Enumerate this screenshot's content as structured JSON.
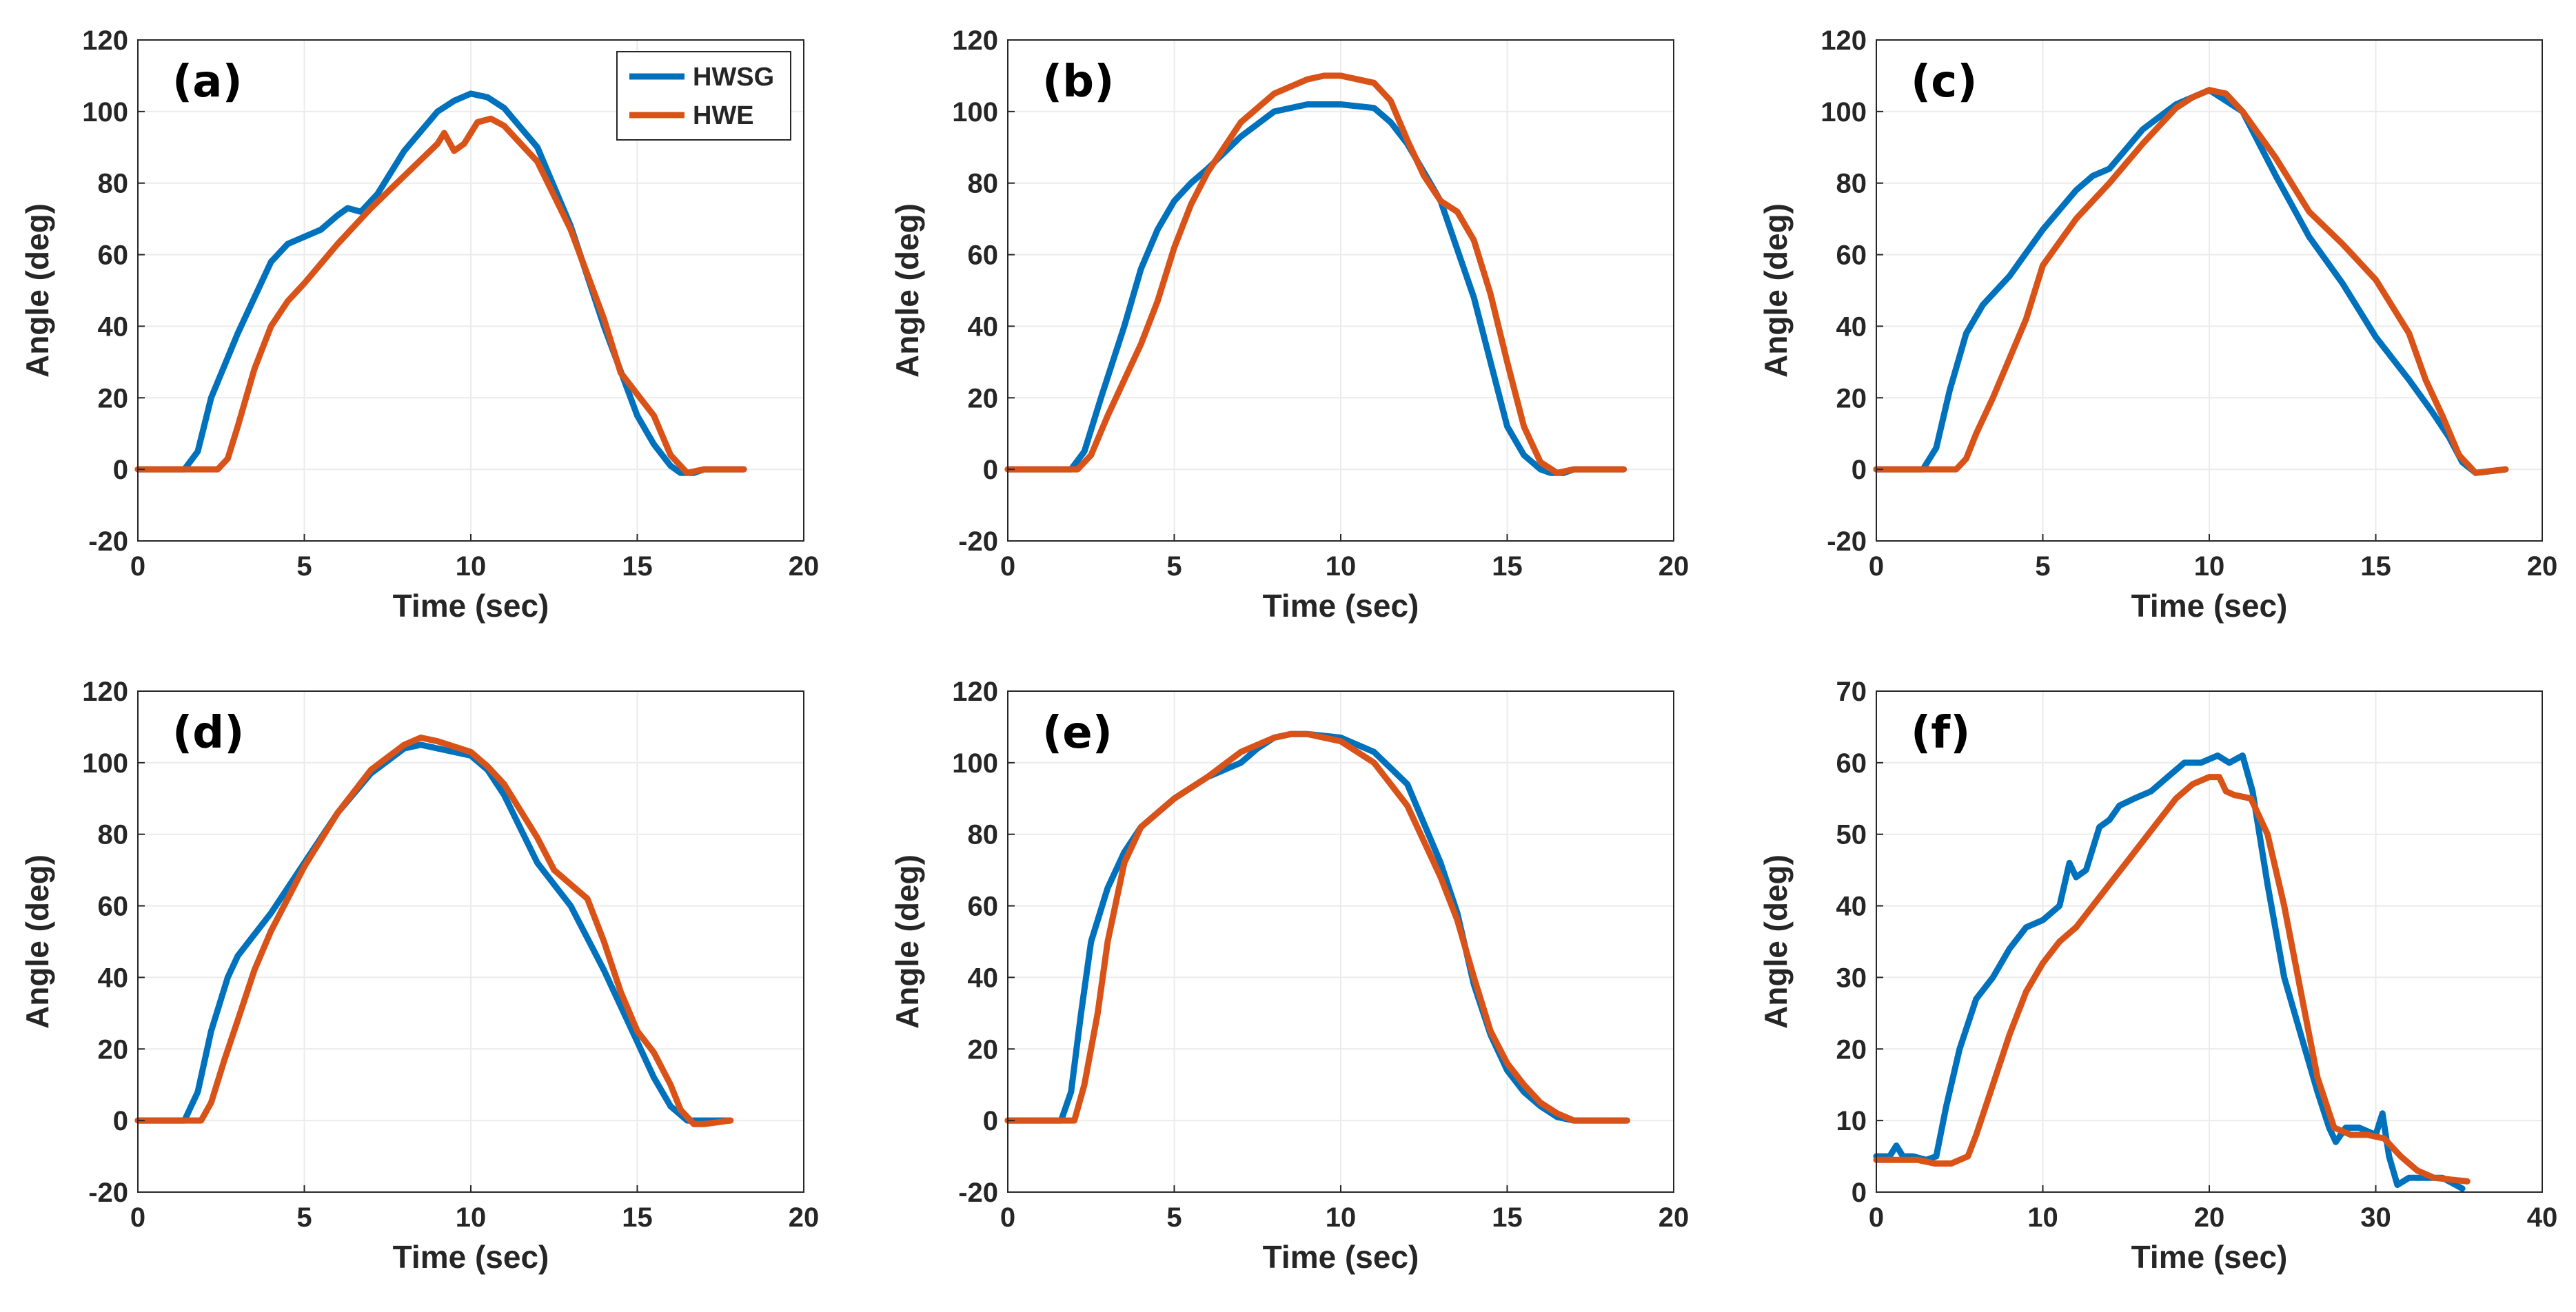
{
  "figure": {
    "colors": {
      "series1": "#0072BD",
      "series2": "#D95319",
      "axis": "#262626",
      "grid": "#ebebeb",
      "background": "#ffffff"
    },
    "legend": {
      "entries": [
        "HWSG",
        "HWE"
      ],
      "location": "top-right of panel (a)"
    }
  },
  "chart_data": [
    {
      "type": "line",
      "panel_label": "(a)",
      "xlabel": "Time (sec)",
      "ylabel": "Angle (deg)",
      "xlim": [
        0,
        20
      ],
      "ylim": [
        -20,
        120
      ],
      "xticks": [
        0,
        5,
        10,
        15,
        20
      ],
      "yticks": [
        -20,
        0,
        20,
        40,
        60,
        80,
        100,
        120
      ],
      "grid": true,
      "series": [
        {
          "name": "HWSG",
          "x": [
            0,
            1.4,
            1.8,
            2.2,
            3,
            4,
            4.5,
            5,
            5.5,
            6,
            6.3,
            6.7,
            7.2,
            8,
            9,
            9.5,
            10,
            10.5,
            11,
            12,
            13,
            14,
            15,
            15.5,
            16,
            16.3,
            16.7,
            17,
            18.2
          ],
          "y": [
            0,
            0,
            5,
            20,
            38,
            58,
            63,
            65,
            67,
            71,
            73,
            72,
            77,
            89,
            100,
            103,
            105,
            104,
            101,
            90,
            68,
            40,
            15,
            7,
            1,
            -1,
            -1,
            0,
            0
          ]
        },
        {
          "name": "HWE",
          "x": [
            0,
            2.4,
            2.7,
            3,
            3.5,
            4,
            4.5,
            5,
            6,
            7,
            8,
            9,
            9.2,
            9.5,
            9.8,
            10.2,
            10.6,
            11,
            12,
            13,
            14,
            14.5,
            15,
            15.5,
            16,
            16.5,
            17,
            18.2
          ],
          "y": [
            0,
            0,
            3,
            12,
            28,
            40,
            47,
            52,
            63,
            73,
            82,
            91,
            94,
            89,
            91,
            97,
            98,
            96,
            86,
            67,
            42,
            27,
            21,
            15,
            4,
            -1,
            0,
            0
          ]
        }
      ]
    },
    {
      "type": "line",
      "panel_label": "(b)",
      "xlabel": "Time (sec)",
      "ylabel": "Angle (deg)",
      "xlim": [
        0,
        20
      ],
      "ylim": [
        -20,
        120
      ],
      "xticks": [
        0,
        5,
        10,
        15,
        20
      ],
      "yticks": [
        -20,
        0,
        20,
        40,
        60,
        80,
        100,
        120
      ],
      "grid": true,
      "series": [
        {
          "name": "HWSG",
          "x": [
            0,
            1.9,
            2.3,
            2.8,
            3.5,
            4,
            4.5,
            5,
            5.5,
            6,
            7,
            8,
            9,
            10,
            11,
            11.5,
            12,
            13,
            14,
            14.5,
            15,
            15.5,
            16,
            16.3,
            16.7,
            17,
            18.5
          ],
          "y": [
            0,
            0,
            5,
            20,
            40,
            56,
            67,
            75,
            80,
            84,
            93,
            100,
            102,
            102,
            101,
            97,
            91,
            75,
            48,
            30,
            12,
            4,
            0,
            -1,
            -1,
            0,
            0
          ]
        },
        {
          "name": "HWE",
          "x": [
            0,
            2.1,
            2.5,
            3,
            3.5,
            4,
            4.5,
            5,
            5.5,
            6,
            7,
            8,
            9,
            9.5,
            10,
            11,
            11.5,
            12,
            12.5,
            13,
            13.5,
            14,
            14.5,
            15,
            15.5,
            16,
            16.5,
            17,
            18.5
          ],
          "y": [
            0,
            0,
            4,
            15,
            25,
            35,
            47,
            62,
            74,
            83,
            97,
            105,
            109,
            110,
            110,
            108,
            103,
            92,
            82,
            75,
            72,
            64,
            49,
            30,
            12,
            2,
            -1,
            0,
            0
          ]
        }
      ]
    },
    {
      "type": "line",
      "panel_label": "(c)",
      "xlabel": "Time (sec)",
      "ylabel": "Angle (deg)",
      "xlim": [
        0,
        20
      ],
      "ylim": [
        -20,
        120
      ],
      "xticks": [
        0,
        5,
        10,
        15,
        20
      ],
      "yticks": [
        -20,
        0,
        20,
        40,
        60,
        80,
        100,
        120
      ],
      "grid": true,
      "series": [
        {
          "name": "HWSG",
          "x": [
            0,
            1.4,
            1.8,
            2.2,
            2.7,
            3.2,
            4,
            5,
            6,
            6.5,
            7,
            8,
            9,
            10,
            11,
            12,
            13,
            14,
            15,
            16,
            16.7,
            17.2,
            17.6,
            18,
            18.9
          ],
          "y": [
            0,
            0,
            6,
            22,
            38,
            46,
            54,
            67,
            78,
            82,
            84,
            95,
            102,
            106,
            100,
            82,
            65,
            52,
            37,
            25,
            16,
            9,
            2,
            -1,
            0
          ]
        },
        {
          "name": "HWE",
          "x": [
            0,
            2.4,
            2.7,
            3,
            3.5,
            4,
            4.5,
            5,
            6,
            7,
            8,
            9,
            9.5,
            10,
            10.5,
            11,
            12,
            13,
            14,
            15,
            16,
            16.5,
            17,
            17.5,
            18,
            18.9
          ],
          "y": [
            0,
            0,
            3,
            10,
            20,
            31,
            42,
            57,
            70,
            80,
            91,
            101,
            104,
            106,
            105,
            100,
            87,
            72,
            63,
            53,
            38,
            25,
            15,
            4,
            -1,
            0
          ]
        }
      ]
    },
    {
      "type": "line",
      "panel_label": "(d)",
      "xlabel": "Time (sec)",
      "ylabel": "Angle (deg)",
      "xlim": [
        0,
        20
      ],
      "ylim": [
        -20,
        120
      ],
      "xticks": [
        0,
        5,
        10,
        15,
        20
      ],
      "yticks": [
        -20,
        0,
        20,
        40,
        60,
        80,
        100,
        120
      ],
      "grid": true,
      "series": [
        {
          "name": "HWSG",
          "x": [
            0,
            1.4,
            1.8,
            2.2,
            2.7,
            3,
            3.5,
            4,
            5,
            6,
            7,
            8,
            8.5,
            9,
            10,
            10.5,
            11,
            12,
            13,
            14,
            15,
            15.5,
            16,
            16.5,
            17,
            17.8
          ],
          "y": [
            0,
            0,
            8,
            25,
            40,
            46,
            52,
            58,
            72,
            86,
            97,
            104,
            105,
            104,
            102,
            98,
            91,
            72,
            60,
            42,
            22,
            12,
            4,
            0,
            0,
            0
          ]
        },
        {
          "name": "HWE",
          "x": [
            0,
            1.9,
            2.2,
            2.6,
            3,
            3.5,
            4,
            4.5,
            5,
            6,
            7,
            8,
            8.5,
            9,
            10,
            10.5,
            11,
            12,
            12.5,
            13,
            13.5,
            14,
            14.5,
            15,
            15.5,
            16,
            16.3,
            16.7,
            17,
            17.8
          ],
          "y": [
            0,
            0,
            5,
            17,
            28,
            42,
            53,
            62,
            71,
            86,
            98,
            105,
            107,
            106,
            103,
            99,
            94,
            79,
            70,
            66,
            62,
            50,
            36,
            25,
            19,
            10,
            3,
            -1,
            -1,
            0
          ]
        }
      ]
    },
    {
      "type": "line",
      "panel_label": "(e)",
      "xlabel": "Time (sec)",
      "ylabel": "Angle (deg)",
      "xlim": [
        0,
        20
      ],
      "ylim": [
        -20,
        120
      ],
      "xticks": [
        0,
        5,
        10,
        15,
        20
      ],
      "yticks": [
        -20,
        0,
        20,
        40,
        60,
        80,
        100,
        120
      ],
      "grid": true,
      "series": [
        {
          "name": "HWSG",
          "x": [
            0,
            1.6,
            1.9,
            2.2,
            2.5,
            3,
            3.5,
            4,
            5,
            6,
            7,
            7.5,
            8,
            8.5,
            9,
            10,
            11,
            12,
            13,
            13.5,
            14,
            14.5,
            15,
            15.5,
            16,
            16.5,
            17,
            18.6
          ],
          "y": [
            0,
            0,
            8,
            30,
            50,
            65,
            75,
            82,
            90,
            96,
            100,
            104,
            107,
            108,
            108,
            107,
            103,
            94,
            72,
            58,
            38,
            24,
            14,
            8,
            4,
            1,
            0,
            0
          ]
        },
        {
          "name": "HWE",
          "x": [
            0,
            2,
            2.3,
            2.7,
            3,
            3.5,
            4,
            4.5,
            5,
            6,
            7,
            8,
            8.5,
            9,
            10,
            11,
            12,
            13,
            13.5,
            14,
            14.5,
            15,
            15.5,
            16,
            16.5,
            17,
            18.6
          ],
          "y": [
            0,
            0,
            10,
            30,
            50,
            72,
            82,
            86,
            90,
            96,
            103,
            107,
            108,
            108,
            106,
            100,
            88,
            68,
            56,
            40,
            25,
            16,
            10,
            5,
            2,
            0,
            0
          ]
        }
      ]
    },
    {
      "type": "line",
      "panel_label": "(f)",
      "xlabel": "Time (sec)",
      "ylabel": "Angle (deg)",
      "xlim": [
        0,
        40
      ],
      "ylim": [
        0,
        70
      ],
      "xticks": [
        0,
        10,
        20,
        30,
        40
      ],
      "yticks": [
        0,
        10,
        20,
        30,
        40,
        50,
        60,
        70
      ],
      "grid": true,
      "series": [
        {
          "name": "HWSG",
          "x": [
            0,
            0.8,
            1.2,
            1.6,
            2.2,
            3,
            3.6,
            4.2,
            5,
            6,
            7,
            8,
            9,
            10,
            11,
            11.6,
            12,
            12.6,
            13.4,
            14,
            14.6,
            15.5,
            16.5,
            17.5,
            18.5,
            19.5,
            20.5,
            21.2,
            22,
            22.6,
            23.5,
            24.5,
            25.5,
            26.5,
            27.2,
            27.6,
            28.2,
            29,
            30,
            30.4,
            30.8,
            31.3,
            32,
            33,
            34,
            35.2
          ],
          "y": [
            5,
            5,
            6.5,
            5,
            5,
            4.5,
            5,
            12,
            20,
            27,
            30,
            34,
            37,
            38,
            40,
            46,
            44,
            45,
            51,
            52,
            54,
            55,
            56,
            58,
            60,
            60,
            61,
            60,
            61,
            56,
            43,
            30,
            22,
            14,
            9,
            7,
            9,
            9,
            8,
            11,
            5,
            1,
            2,
            2,
            2,
            0.5
          ]
        },
        {
          "name": "HWE",
          "x": [
            0,
            1.5,
            2.5,
            3.5,
            4.5,
            5.5,
            6,
            7,
            8,
            9,
            10,
            11,
            12,
            13,
            14,
            15,
            16,
            17,
            18,
            19,
            20,
            20.6,
            21,
            21.5,
            22.5,
            23.5,
            24.5,
            25.5,
            26.5,
            27.5,
            28.5,
            29.5,
            30.5,
            31.5,
            32.5,
            33.5,
            35.5
          ],
          "y": [
            4.5,
            4.5,
            4.5,
            4,
            4,
            5,
            8,
            15,
            22,
            28,
            32,
            35,
            37,
            40,
            43,
            46,
            49,
            52,
            55,
            57,
            58,
            58,
            56,
            55.5,
            55,
            50,
            40,
            28,
            16,
            9,
            8,
            8,
            7.5,
            5,
            3,
            2,
            1.5
          ]
        }
      ]
    }
  ]
}
